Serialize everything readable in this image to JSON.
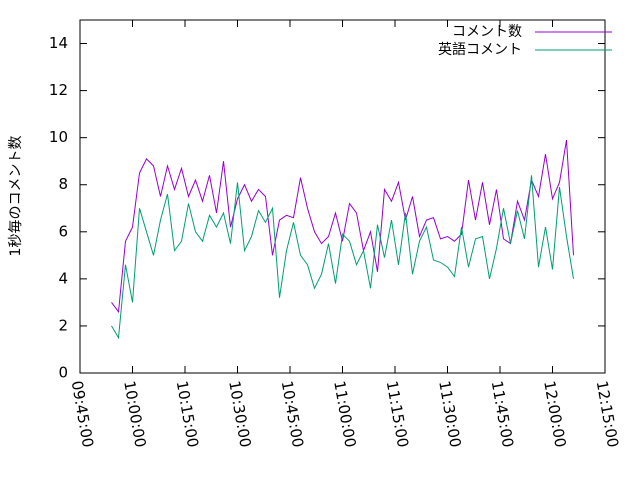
{
  "chart_data": {
    "type": "line",
    "ylabel": "1秒毎のコメント数",
    "x": [
      "09:54:00",
      "09:56:00",
      "09:58:00",
      "10:00:00",
      "10:02:00",
      "10:04:00",
      "10:06:00",
      "10:08:00",
      "10:10:00",
      "10:12:00",
      "10:14:00",
      "10:16:00",
      "10:18:00",
      "10:20:00",
      "10:22:00",
      "10:24:00",
      "10:26:00",
      "10:28:00",
      "10:30:00",
      "10:32:00",
      "10:34:00",
      "10:36:00",
      "10:38:00",
      "10:40:00",
      "10:42:00",
      "10:44:00",
      "10:46:00",
      "10:48:00",
      "10:50:00",
      "10:52:00",
      "10:54:00",
      "10:56:00",
      "10:58:00",
      "11:00:00",
      "11:02:00",
      "11:04:00",
      "11:06:00",
      "11:08:00",
      "11:10:00",
      "11:12:00",
      "11:14:00",
      "11:16:00",
      "11:18:00",
      "11:20:00",
      "11:22:00",
      "11:24:00",
      "11:26:00",
      "11:28:00",
      "11:30:00",
      "11:32:00",
      "11:34:00",
      "11:36:00",
      "11:38:00",
      "11:40:00",
      "11:42:00",
      "11:44:00",
      "11:46:00",
      "11:48:00",
      "11:50:00",
      "11:52:00",
      "11:54:00",
      "11:56:00",
      "11:58:00",
      "12:00:00",
      "12:02:00",
      "12:04:00",
      "12:06:00"
    ],
    "series": [
      {
        "name": "コメント数",
        "color": "#9400d3",
        "values": [
          3.0,
          2.6,
          5.6,
          6.2,
          8.5,
          9.1,
          8.8,
          7.5,
          8.8,
          7.8,
          8.7,
          7.5,
          8.2,
          7.3,
          8.4,
          6.8,
          9.0,
          6.2,
          7.4,
          8.0,
          7.3,
          7.8,
          7.5,
          5.0,
          6.5,
          6.7,
          6.6,
          8.3,
          7.0,
          6.0,
          5.5,
          5.8,
          6.8,
          5.6,
          7.2,
          6.8,
          5.2,
          6.0,
          4.3,
          7.8,
          7.3,
          8.1,
          6.5,
          7.5,
          5.8,
          6.5,
          6.6,
          5.7,
          5.8,
          5.6,
          5.9,
          8.2,
          6.5,
          8.1,
          6.3,
          7.8,
          5.7,
          5.5,
          7.3,
          6.5,
          8.2,
          7.5,
          9.3,
          7.4,
          8.1,
          9.9,
          5.0
        ]
      },
      {
        "name": "英語コメント",
        "color": "#009e73",
        "values": [
          2.0,
          1.5,
          4.6,
          3.0,
          7.0,
          6.0,
          5.0,
          6.5,
          7.6,
          5.2,
          5.6,
          7.2,
          6.0,
          5.6,
          6.7,
          6.2,
          6.8,
          5.5,
          8.1,
          5.2,
          5.8,
          6.9,
          6.4,
          7.0,
          3.2,
          5.2,
          6.4,
          5.0,
          4.6,
          3.6,
          4.2,
          5.5,
          3.8,
          5.9,
          5.6,
          4.6,
          5.2,
          3.6,
          6.3,
          4.9,
          6.5,
          4.6,
          6.8,
          4.2,
          5.6,
          6.2,
          4.8,
          4.7,
          4.5,
          4.1,
          6.2,
          4.5,
          5.7,
          5.8,
          4.0,
          5.3,
          7.0,
          5.5,
          6.9,
          5.7,
          8.4,
          4.5,
          6.2,
          4.4,
          7.9,
          5.8,
          4.0
        ]
      }
    ],
    "xlim": [
      "09:45:00",
      "12:15:00"
    ],
    "xticks": [
      "09:45:00",
      "10:00:00",
      "10:15:00",
      "10:30:00",
      "10:45:00",
      "11:00:00",
      "11:15:00",
      "11:30:00",
      "11:45:00",
      "12:00:00",
      "12:15:00"
    ],
    "ylim": [
      0,
      15
    ],
    "yticks": [
      0,
      2,
      4,
      6,
      8,
      10,
      12,
      14
    ],
    "legend": "top-right",
    "grid": false
  }
}
